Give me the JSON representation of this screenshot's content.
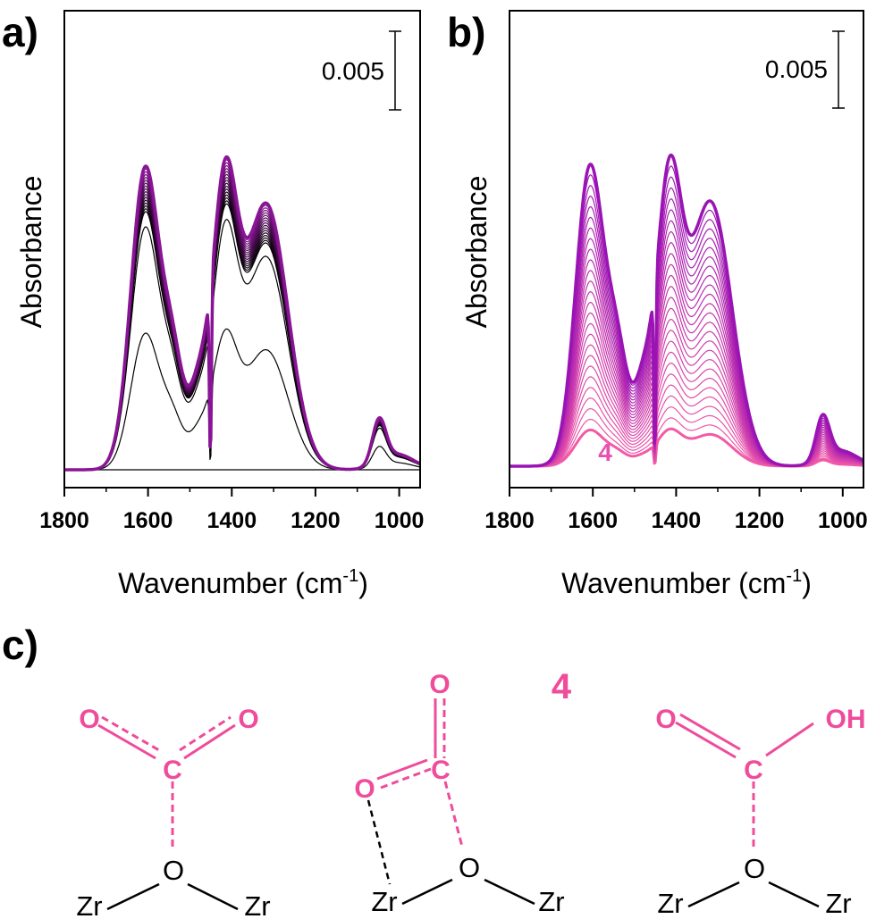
{
  "chart_data": [
    {
      "type": "line",
      "panel": "a)",
      "xlabel_main": "Wavenumber (cm",
      "xlabel_sup": "-1",
      "xlabel_close": ")",
      "ylabel": "Absorbance",
      "xlim": [
        1800,
        950
      ],
      "x_ticks": [
        "1800",
        "1600",
        "1400",
        "1200",
        "1000"
      ],
      "scale_bar": "0.005",
      "scale_bar_value": 0.005,
      "n_traces": 20,
      "colors": {
        "start": "#000000",
        "end": "#8a1496"
      }
    },
    {
      "type": "line",
      "panel": "b)",
      "xlabel_main": "Wavenumber (cm",
      "xlabel_sup": "-1",
      "xlabel_close": ")",
      "ylabel": "Absorbance",
      "xlim": [
        1800,
        950
      ],
      "x_ticks": [
        "1800",
        "1600",
        "1400",
        "1200",
        "1000"
      ],
      "scale_bar": "0.005",
      "scale_bar_value": 0.005,
      "trace_label": "4",
      "n_traces": 26,
      "colors": {
        "start": "#f25aa8",
        "end": "#9a14b4"
      }
    }
  ],
  "structures": {
    "panel": "c)",
    "label": "4",
    "colors": {
      "species": "#ef4c9b",
      "surface": "#000000"
    },
    "s1": {
      "o_left": "O",
      "o_right": "O",
      "c": "C",
      "o_bridge": "O",
      "zr_left": "Zr",
      "zr_right": "Zr"
    },
    "s2": {
      "o_top": "O",
      "c": "C",
      "o_left": "O",
      "o_bridge": "O",
      "zr_left": "Zr",
      "zr_right": "Zr"
    },
    "s3": {
      "o_left": "O",
      "oh": "OH",
      "c": "C",
      "o_bridge": "O",
      "zr_left": "Zr",
      "zr_right": "Zr"
    }
  }
}
